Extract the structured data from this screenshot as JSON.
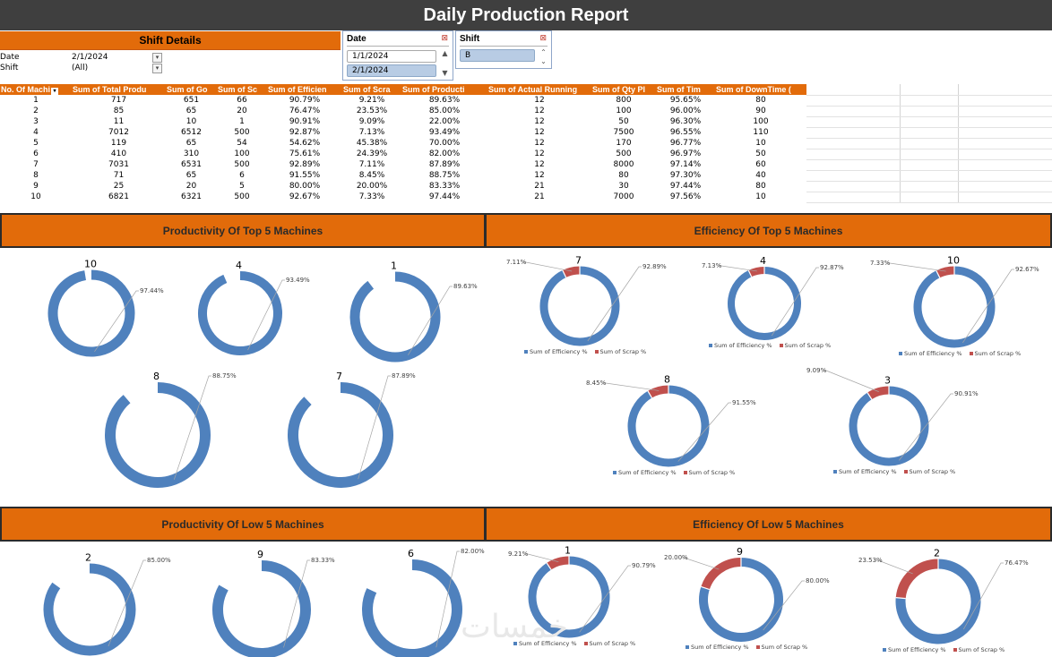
{
  "report": {
    "title": "Daily Production Report"
  },
  "shift_details": {
    "header": "Shift Details",
    "filters": [
      {
        "label": "Date",
        "value": "2/1/2024"
      },
      {
        "label": "Shift",
        "value": "(All)"
      }
    ]
  },
  "slicers": {
    "date": {
      "title": "Date",
      "items": [
        "1/1/2024",
        "2/1/2024"
      ],
      "selected": "2/1/2024"
    },
    "shift": {
      "title": "Shift",
      "items": [
        "B"
      ],
      "selected": "B"
    }
  },
  "pivot": {
    "headers": [
      "No. Of Machi",
      "Sum of Total Produ",
      "Sum of Go",
      "Sum of Sc",
      "Sum of Efficien",
      "Sum of Scra",
      "Sum of Producti",
      "Sum of Actual Running",
      "Sum of Qty Pl",
      "Sum of Tim",
      "Sum of DownTime ("
    ],
    "rows": [
      [
        "1",
        "717",
        "651",
        "66",
        "90.79%",
        "9.21%",
        "89.63%",
        "12",
        "800",
        "95.65%",
        "80"
      ],
      [
        "2",
        "85",
        "65",
        "20",
        "76.47%",
        "23.53%",
        "85.00%",
        "12",
        "100",
        "96.00%",
        "90"
      ],
      [
        "3",
        "11",
        "10",
        "1",
        "90.91%",
        "9.09%",
        "22.00%",
        "12",
        "50",
        "96.30%",
        "100"
      ],
      [
        "4",
        "7012",
        "6512",
        "500",
        "92.87%",
        "7.13%",
        "93.49%",
        "12",
        "7500",
        "96.55%",
        "110"
      ],
      [
        "5",
        "119",
        "65",
        "54",
        "54.62%",
        "45.38%",
        "70.00%",
        "12",
        "170",
        "96.77%",
        "10"
      ],
      [
        "6",
        "410",
        "310",
        "100",
        "75.61%",
        "24.39%",
        "82.00%",
        "12",
        "500",
        "96.97%",
        "50"
      ],
      [
        "7",
        "7031",
        "6531",
        "500",
        "92.89%",
        "7.11%",
        "87.89%",
        "12",
        "8000",
        "97.14%",
        "60"
      ],
      [
        "8",
        "71",
        "65",
        "6",
        "91.55%",
        "8.45%",
        "88.75%",
        "12",
        "80",
        "97.30%",
        "40"
      ],
      [
        "9",
        "25",
        "20",
        "5",
        "80.00%",
        "20.00%",
        "83.33%",
        "21",
        "30",
        "97.44%",
        "80"
      ],
      [
        "10",
        "6821",
        "6321",
        "500",
        "92.67%",
        "7.33%",
        "97.44%",
        "21",
        "7000",
        "97.56%",
        "10"
      ]
    ]
  },
  "sections": {
    "prod_top": "Productivity Of Top 5 Machines",
    "eff_top": "Efficiency Of Top 5 Machines",
    "prod_low": "Productivity Of Low 5 Machines",
    "eff_low": "Efficiency Of Low 5 Machines"
  },
  "legend": {
    "efficiency": "Sum of Efficiency %",
    "scrap": "Sum of Scrap %"
  },
  "colors": {
    "header": "#e26b0a",
    "blue": "#4f81bd",
    "red": "#c0504d",
    "title_bar": "#3f3f3f"
  },
  "chart_data": [
    {
      "type": "pie",
      "title": "Productivity Of Top 5 Machines",
      "series": [
        {
          "name": "10",
          "values": [
            97.44
          ]
        },
        {
          "name": "4",
          "values": [
            93.49
          ]
        },
        {
          "name": "1",
          "values": [
            89.63
          ]
        },
        {
          "name": "8",
          "values": [
            88.75
          ]
        },
        {
          "name": "7",
          "values": [
            87.89
          ]
        }
      ]
    },
    {
      "type": "pie",
      "title": "Efficiency Of Top 5 Machines",
      "categories": [
        "Sum of Efficiency %",
        "Sum of Scrap %"
      ],
      "series": [
        {
          "name": "7",
          "values": [
            92.89,
            7.11
          ]
        },
        {
          "name": "4",
          "values": [
            92.87,
            7.13
          ]
        },
        {
          "name": "10",
          "values": [
            92.67,
            7.33
          ]
        },
        {
          "name": "8",
          "values": [
            91.55,
            8.45
          ]
        },
        {
          "name": "3",
          "values": [
            90.91,
            9.09
          ]
        }
      ]
    },
    {
      "type": "pie",
      "title": "Productivity Of Low 5 Machines",
      "series": [
        {
          "name": "2",
          "values": [
            85.0
          ]
        },
        {
          "name": "9",
          "values": [
            83.33
          ]
        },
        {
          "name": "6",
          "values": [
            82.0
          ]
        }
      ]
    },
    {
      "type": "pie",
      "title": "Efficiency Of Low 5 Machines",
      "categories": [
        "Sum of Efficiency %",
        "Sum of Scrap %"
      ],
      "series": [
        {
          "name": "1",
          "values": [
            90.79,
            9.21
          ]
        },
        {
          "name": "9",
          "values": [
            80.0,
            20.0
          ]
        },
        {
          "name": "2",
          "values": [
            76.47,
            23.53
          ]
        }
      ]
    }
  ],
  "watermark": "خمسات"
}
